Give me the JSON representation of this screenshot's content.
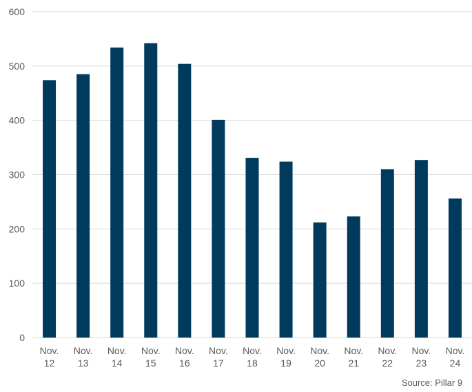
{
  "chart_data": {
    "type": "bar",
    "categories": [
      "Nov.\n12",
      "Nov.\n13",
      "Nov.\n14",
      "Nov.\n15",
      "Nov.\n16",
      "Nov.\n17",
      "Nov.\n18",
      "Nov.\n19",
      "Nov.\n20",
      "Nov.\n21",
      "Nov.\n22",
      "Nov.\n23",
      "Nov.\n24"
    ],
    "values": [
      474,
      485,
      534,
      542,
      504,
      401,
      331,
      324,
      212,
      223,
      310,
      327,
      256
    ],
    "ylim": [
      0,
      600
    ],
    "yticks": [
      0,
      100,
      200,
      300,
      400,
      500,
      600
    ],
    "grid": true,
    "colors": {
      "bar": "#003a5d",
      "grid": "#d9d9d9",
      "text": "#595959"
    }
  },
  "source": "Source: Pillar 9"
}
